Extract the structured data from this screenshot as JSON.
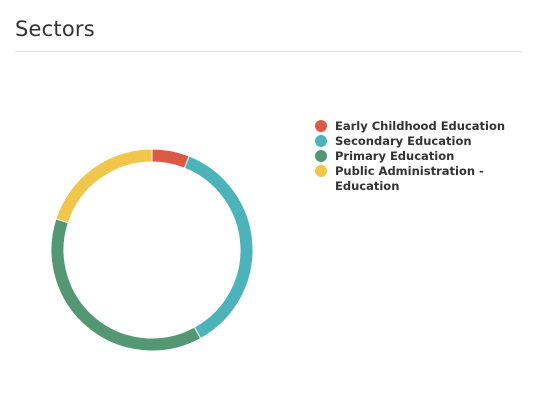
{
  "header": {
    "title": "Sectors"
  },
  "chart_data": {
    "type": "pie",
    "variant": "donut",
    "title": "",
    "legend_position": "right",
    "series": [
      {
        "name": "Early Childhood Education",
        "value": 6,
        "color": "#dc5a45"
      },
      {
        "name": "Secondary Education",
        "value": 36,
        "color": "#4db3bb"
      },
      {
        "name": "Primary Education",
        "value": 38,
        "color": "#549873"
      },
      {
        "name": "Public Administration - Education",
        "value": 20,
        "color": "#f0c64b"
      }
    ]
  }
}
